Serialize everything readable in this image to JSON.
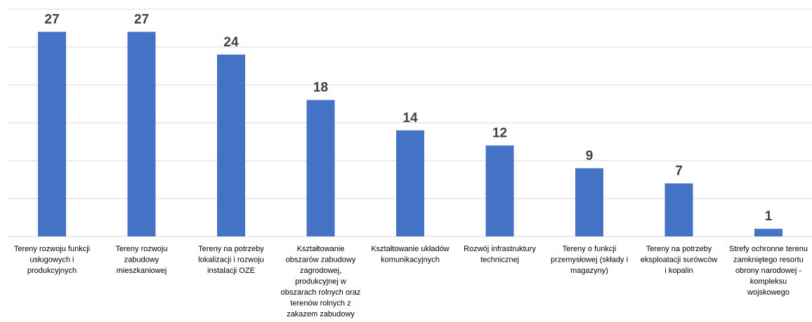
{
  "chart_data": {
    "type": "bar",
    "categories": [
      [
        "Tereny rozwoju funkcji",
        "usługowych i",
        "produkcyjnych"
      ],
      [
        "Tereny rozwoju",
        "zabudowy",
        "mieszkaniowej"
      ],
      [
        "Tereny na potrzeby",
        "lokalizacji i rozwoju",
        "instalacji OZE"
      ],
      [
        "Kształtowanie",
        "obszarów zabudowy",
        "zagrodowej,",
        "produkcyjnej w",
        "obszarach rolnych oraz",
        "terenów rolnych z",
        "zakazem zabudowy"
      ],
      [
        "Kształtowanie układów",
        "komunikacyjnych"
      ],
      [
        "Rozwój infrastruktury",
        "technicznej"
      ],
      [
        "Tereny o funkcji",
        "przemysłowej (składy i",
        "magazyny)"
      ],
      [
        "Tereny na potrzeby",
        "eksploatacji surówców",
        "i kopalin"
      ],
      [
        "Strefy ochronne terenu",
        "zamkniętego resortu",
        "obrony narodowej -",
        "kompleksu",
        "wojskowego"
      ]
    ],
    "values": [
      27,
      27,
      24,
      18,
      14,
      12,
      9,
      7,
      1
    ],
    "ylim": [
      0,
      30
    ],
    "grid": true,
    "bar_color": "#4472c4",
    "title": "",
    "xlabel": "",
    "ylabel": ""
  }
}
